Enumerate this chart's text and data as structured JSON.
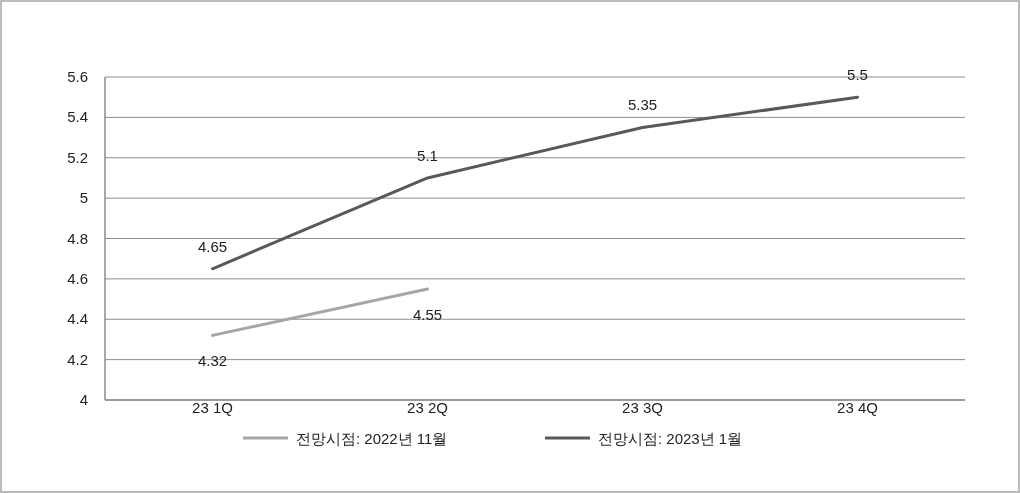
{
  "chart_data": {
    "type": "line",
    "categories": [
      "23 1Q",
      "23 2Q",
      "23 3Q",
      "23 4Q"
    ],
    "series": [
      {
        "name": "전망시점: 2022년 11월",
        "color": "#a6a6a6",
        "values": [
          4.32,
          4.55,
          null,
          null
        ]
      },
      {
        "name": "전망시점: 2023년 1월",
        "color": "#595959",
        "values": [
          4.65,
          5.1,
          5.35,
          5.5
        ]
      }
    ],
    "ylim": [
      4,
      5.6
    ],
    "yticks": [
      4,
      4.2,
      4.4,
      4.6,
      4.8,
      5,
      5.2,
      5.4,
      5.6
    ],
    "grid": "y",
    "legend": "bottom",
    "data_labels": true,
    "marker": "none",
    "line_style": "solid"
  }
}
